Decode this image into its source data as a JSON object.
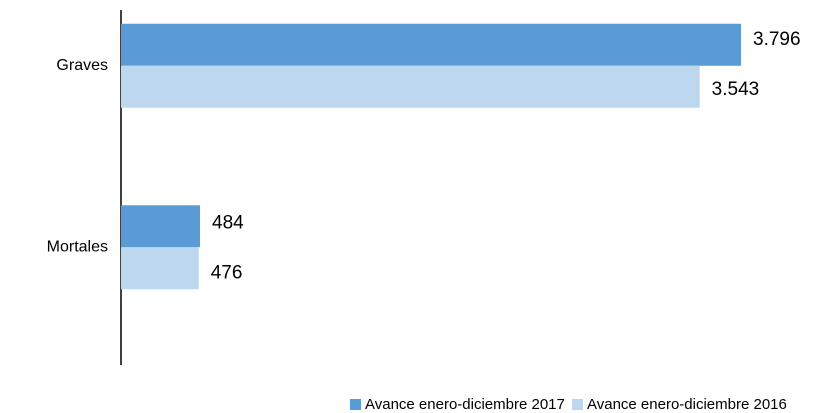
{
  "chart_data": {
    "type": "bar",
    "orientation": "horizontal",
    "categories": [
      "Graves",
      "Mortales"
    ],
    "series": [
      {
        "name": "Avance enero-diciembre 2017",
        "color": "#5b9bd5",
        "values": [
          3796,
          484
        ],
        "value_labels": [
          "3.796",
          "484"
        ]
      },
      {
        "name": "Avance enero-diciembre 2016",
        "color": "#bdd7ee",
        "values": [
          3543,
          476
        ],
        "value_labels": [
          "3.543",
          "476"
        ]
      }
    ]
  }
}
